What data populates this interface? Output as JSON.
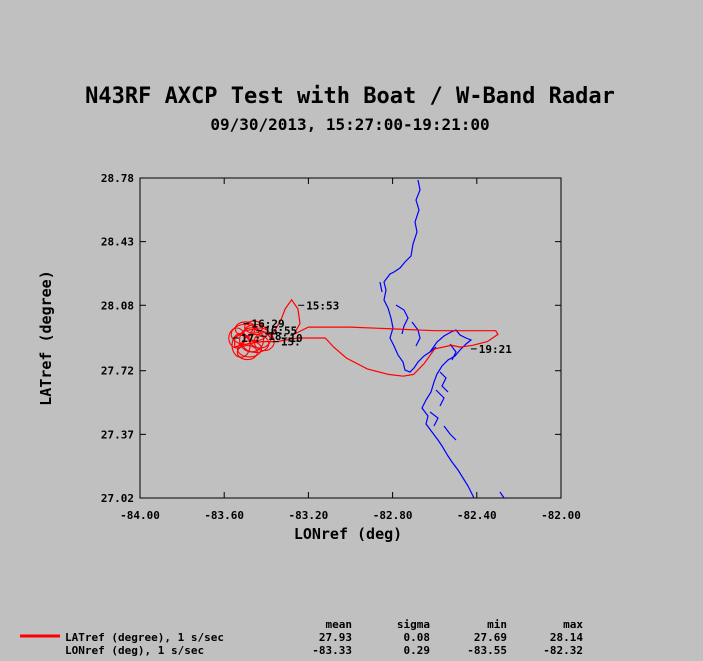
{
  "chart_data": {
    "type": "line",
    "title": "N43RF AXCP Test with Boat / W-Band Radar",
    "subtitle": "09/30/2013, 15:27:00-19:21:00",
    "xlabel": "LONref (deg)",
    "ylabel": "LATref (degree)",
    "xlim": [
      -84.0,
      -82.0
    ],
    "ylim": [
      27.02,
      28.78
    ],
    "xticks": [
      "-84.00",
      "-83.60",
      "-83.20",
      "-82.80",
      "-82.40",
      "-82.00"
    ],
    "yticks": [
      "27.02",
      "27.37",
      "27.72",
      "28.08",
      "28.43",
      "28.78"
    ],
    "colors": {
      "flight_track": "#ff0000",
      "coastline": "#0000ff",
      "background": "#c0c0c0"
    },
    "series": [
      {
        "name": "LATref (degree), 1 s/sec",
        "color": "#ff0000",
        "points": [
          [
            -83.27,
            27.92
          ],
          [
            -83.2,
            27.96
          ],
          [
            -83.0,
            27.96
          ],
          [
            -82.8,
            27.95
          ],
          [
            -82.6,
            27.94
          ],
          [
            -82.45,
            27.94
          ],
          [
            -82.31,
            27.94
          ],
          [
            -82.3,
            27.92
          ],
          [
            -82.35,
            27.88
          ],
          [
            -82.42,
            27.86
          ],
          [
            -82.48,
            27.85
          ],
          [
            -82.52,
            27.86
          ],
          [
            -82.6,
            27.84
          ],
          [
            -82.65,
            27.76
          ],
          [
            -82.7,
            27.7
          ],
          [
            -82.75,
            27.69
          ],
          [
            -82.82,
            27.7
          ],
          [
            -82.92,
            27.73
          ],
          [
            -83.02,
            27.79
          ],
          [
            -83.08,
            27.85
          ],
          [
            -83.12,
            27.9
          ],
          [
            -83.25,
            27.9
          ],
          [
            -83.3,
            27.89
          ],
          [
            -83.35,
            27.88
          ],
          [
            -83.42,
            27.88
          ],
          [
            -83.48,
            27.87
          ],
          [
            -83.52,
            27.86
          ],
          [
            -83.55,
            27.85
          ],
          [
            -83.55,
            27.9
          ],
          [
            -83.5,
            27.94
          ],
          [
            -83.45,
            27.95
          ],
          [
            -83.4,
            27.93
          ],
          [
            -83.38,
            27.9
          ],
          [
            -83.35,
            27.96
          ],
          [
            -83.33,
            28.0
          ],
          [
            -83.31,
            28.06
          ],
          [
            -83.28,
            28.11
          ],
          [
            -83.25,
            28.06
          ],
          [
            -83.24,
            27.98
          ],
          [
            -83.27,
            27.92
          ]
        ]
      }
    ],
    "annotations": [
      {
        "label": "15:53",
        "lon": -83.22,
        "lat": 28.08
      },
      {
        "label": "19:21",
        "lon": -82.4,
        "lat": 27.84
      },
      {
        "label": "16:29",
        "lon": -83.48,
        "lat": 27.98
      },
      {
        "label": "16:55",
        "lon": -83.42,
        "lat": 27.94
      },
      {
        "label": "17:",
        "lon": -83.53,
        "lat": 27.9
      },
      {
        "label": "18:",
        "lon": -83.4,
        "lat": 27.91
      },
      {
        "label": "15:",
        "lon": -83.34,
        "lat": 27.88
      },
      {
        "label": "10",
        "lon": -83.3,
        "lat": 27.9
      }
    ],
    "legend": {
      "headers": [
        "mean",
        "sigma",
        "min",
        "max"
      ],
      "rows": [
        {
          "label": "LATref (degree), 1 s/sec",
          "mean": "27.93",
          "sigma": "0.08",
          "min": "27.69",
          "max": "28.14"
        },
        {
          "label": "LONref (deg), 1 s/sec",
          "mean": "-83.33",
          "sigma": "0.29",
          "min": "-83.55",
          "max": "-82.32"
        }
      ]
    },
    "grid": false
  }
}
